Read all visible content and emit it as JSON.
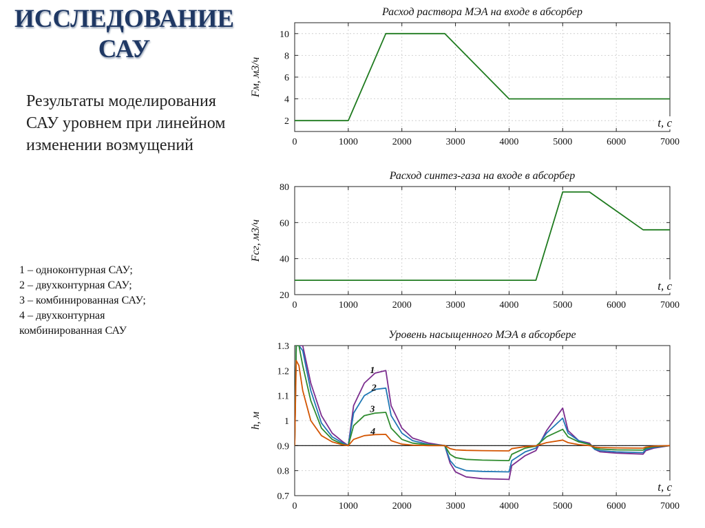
{
  "slide": {
    "title_line1": "ИССЛЕДОВАНИЕ",
    "title_line2": "САУ",
    "subtitle": "Результаты моделирования САУ уровнем при линейном изменении возмущений",
    "legend": [
      "1 – одноконтурная САУ;",
      "2 – двухконтурная САУ;",
      "3 – комбинированная САУ;",
      "4 – двухконтурная",
      "комбинированная САУ"
    ]
  },
  "chart_data": [
    {
      "type": "line",
      "title": "Расход раствора МЭА на входе в абсорбер",
      "xlabel": "t, c",
      "ylabel": "Fм, м3/ч",
      "xlim": [
        0,
        7000
      ],
      "ylim": [
        1,
        11
      ],
      "xticks": [
        0,
        1000,
        2000,
        3000,
        4000,
        5000,
        6000,
        7000
      ],
      "yticks": [
        2,
        4,
        6,
        8,
        10
      ],
      "grid": true,
      "series": [
        {
          "name": "Fм",
          "color": "#1e7a1e",
          "x": [
            0,
            1000,
            1700,
            2800,
            4000,
            7000
          ],
          "y": [
            2,
            2,
            10,
            10,
            4,
            4
          ]
        }
      ]
    },
    {
      "type": "line",
      "title": "Расход синтез-газа на входе в абсорбер",
      "xlabel": "t, c",
      "ylabel": "Fсг, м3/ч",
      "xlim": [
        0,
        7000
      ],
      "ylim": [
        20,
        80
      ],
      "xticks": [
        0,
        1000,
        2000,
        3000,
        4000,
        5000,
        6000,
        7000
      ],
      "yticks": [
        20,
        40,
        60,
        80
      ],
      "grid": true,
      "series": [
        {
          "name": "Fсг",
          "color": "#1e7a1e",
          "x": [
            0,
            4500,
            5000,
            5500,
            6500,
            7000
          ],
          "y": [
            28,
            28,
            77,
            77,
            56,
            56
          ]
        }
      ]
    },
    {
      "type": "line",
      "title": "Уровень насыщенного МЭА в абсорбере",
      "xlabel": "t, c",
      "ylabel": "h, м",
      "xlim": [
        0,
        7000
      ],
      "ylim": [
        0.7,
        1.3
      ],
      "xticks": [
        0,
        1000,
        2000,
        3000,
        4000,
        5000,
        6000,
        7000
      ],
      "yticks": [
        0.7,
        0.8,
        0.9,
        1,
        1.1,
        1.2,
        1.3
      ],
      "ytick_labels": [
        "0.7",
        "0.8",
        "0.9",
        "1",
        "1.1",
        "1.2",
        "1.3"
      ],
      "grid": true,
      "reference_line": 0.9,
      "series": [
        {
          "name": "1",
          "color": "#7b2d8e",
          "x": [
            0,
            30,
            80,
            150,
            300,
            500,
            700,
            900,
            1000,
            1100,
            1300,
            1500,
            1700,
            1800,
            2000,
            2200,
            2500,
            2800,
            2900,
            3000,
            3200,
            3500,
            4000,
            4050,
            4300,
            4500,
            4700,
            5000,
            5100,
            5300,
            5500,
            5600,
            5700,
            6000,
            6500,
            6550,
            6700,
            7000
          ],
          "y": [
            0.9,
            1.3,
            1.3,
            1.3,
            1.15,
            1.02,
            0.95,
            0.915,
            0.9,
            1.06,
            1.15,
            1.19,
            1.2,
            1.06,
            0.97,
            0.93,
            0.91,
            0.9,
            0.83,
            0.795,
            0.775,
            0.768,
            0.765,
            0.82,
            0.86,
            0.88,
            0.96,
            1.05,
            0.96,
            0.92,
            0.91,
            0.885,
            0.875,
            0.87,
            0.866,
            0.88,
            0.89,
            0.9
          ]
        },
        {
          "name": "2",
          "color": "#1f77b4",
          "x": [
            0,
            30,
            80,
            150,
            300,
            500,
            700,
            900,
            1000,
            1100,
            1300,
            1500,
            1700,
            1800,
            2000,
            2200,
            2500,
            2800,
            2900,
            3000,
            3200,
            3500,
            4000,
            4050,
            4300,
            4500,
            4700,
            5000,
            5100,
            5300,
            5500,
            5600,
            5700,
            6000,
            6500,
            6550,
            6700,
            7000
          ],
          "y": [
            0.9,
            1.3,
            1.3,
            1.28,
            1.12,
            0.99,
            0.935,
            0.91,
            0.9,
            1.03,
            1.1,
            1.125,
            1.13,
            1.02,
            0.95,
            0.92,
            0.905,
            0.9,
            0.84,
            0.815,
            0.8,
            0.797,
            0.795,
            0.84,
            0.875,
            0.89,
            0.95,
            1.01,
            0.95,
            0.92,
            0.905,
            0.885,
            0.88,
            0.875,
            0.872,
            0.885,
            0.893,
            0.9
          ]
        },
        {
          "name": "3",
          "color": "#2e8b2e",
          "x": [
            0,
            30,
            80,
            150,
            300,
            500,
            700,
            900,
            1000,
            1100,
            1300,
            1500,
            1700,
            1800,
            2000,
            2200,
            2500,
            2800,
            2900,
            3000,
            3200,
            3500,
            4000,
            4050,
            4300,
            4500,
            4700,
            5000,
            5100,
            5300,
            5500,
            5600,
            5700,
            6000,
            6500,
            6550,
            6700,
            7000
          ],
          "y": [
            0.9,
            1.3,
            1.3,
            1.22,
            1.08,
            0.97,
            0.925,
            0.905,
            0.9,
            0.98,
            1.02,
            1.03,
            1.033,
            0.97,
            0.925,
            0.91,
            0.903,
            0.9,
            0.865,
            0.852,
            0.845,
            0.842,
            0.84,
            0.865,
            0.89,
            0.898,
            0.935,
            0.965,
            0.935,
            0.915,
            0.905,
            0.89,
            0.886,
            0.883,
            0.882,
            0.89,
            0.896,
            0.9
          ]
        },
        {
          "name": "4",
          "color": "#d35400",
          "x": [
            0,
            30,
            80,
            150,
            300,
            500,
            700,
            900,
            1000,
            1100,
            1300,
            1500,
            1700,
            1800,
            2000,
            2200,
            2500,
            2800,
            2900,
            3000,
            3200,
            3500,
            4000,
            4050,
            4300,
            4500,
            4700,
            5000,
            5100,
            5300,
            5500,
            5600,
            5700,
            6000,
            6500,
            6550,
            6700,
            7000
          ],
          "y": [
            0.9,
            1.24,
            1.22,
            1.12,
            1.0,
            0.94,
            0.915,
            0.903,
            0.9,
            0.925,
            0.94,
            0.944,
            0.945,
            0.92,
            0.906,
            0.902,
            0.9,
            0.9,
            0.888,
            0.883,
            0.881,
            0.88,
            0.879,
            0.888,
            0.896,
            0.899,
            0.912,
            0.922,
            0.912,
            0.904,
            0.9,
            0.894,
            0.892,
            0.891,
            0.89,
            0.894,
            0.898,
            0.9
          ]
        }
      ],
      "annotations": [
        {
          "text": "1",
          "x": 1450,
          "y": 1.19
        },
        {
          "text": "2",
          "x": 1480,
          "y": 1.12
        },
        {
          "text": "3",
          "x": 1450,
          "y": 1.035
        },
        {
          "text": "4",
          "x": 1460,
          "y": 0.945
        }
      ]
    }
  ]
}
